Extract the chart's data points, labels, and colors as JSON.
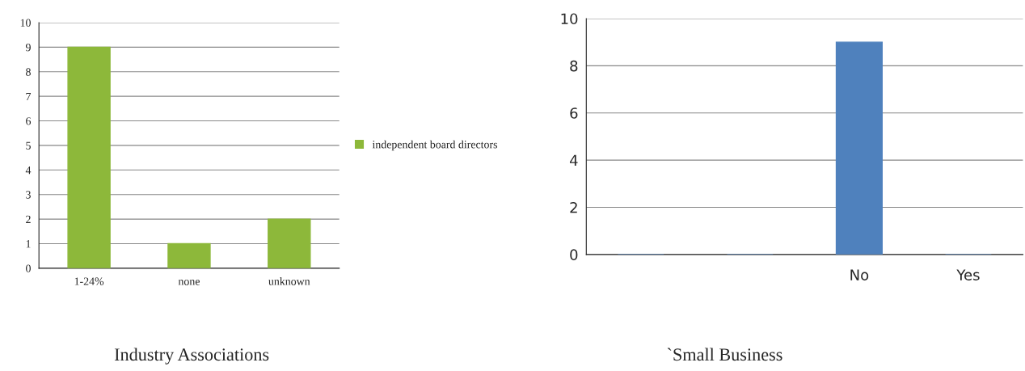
{
  "chart_data": [
    {
      "type": "bar",
      "title": "Industry Associations",
      "categories": [
        "1-24%",
        "none",
        "unknown"
      ],
      "series": [
        {
          "name": "independent board directors",
          "color": "#8db83a",
          "values": [
            9,
            1,
            2
          ]
        }
      ],
      "ylim": [
        0,
        10
      ],
      "yticks": [
        0,
        1,
        2,
        3,
        4,
        5,
        6,
        7,
        8,
        9,
        10
      ],
      "grid": "y",
      "legend": "right"
    },
    {
      "type": "bar",
      "title": "`Small Business",
      "categories": [
        null,
        null,
        "No",
        "Yes"
      ],
      "series": [
        {
          "color": "#4f81bd",
          "values": [
            0,
            0,
            9,
            0
          ]
        }
      ],
      "ylim": [
        0,
        10
      ],
      "yticks": [
        0,
        2,
        4,
        6,
        8,
        10
      ],
      "grid": "y"
    }
  ]
}
